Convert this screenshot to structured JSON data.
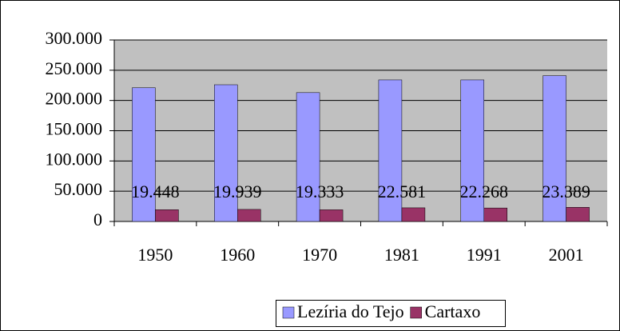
{
  "chart_data": {
    "type": "bar",
    "categories": [
      "1950",
      "1960",
      "1970",
      "1981",
      "1991",
      "2001"
    ],
    "series": [
      {
        "name": "Lezíria do Tejo",
        "color": "#9999ff",
        "values": [
          221000,
          226000,
          213000,
          234000,
          234000,
          241000
        ]
      },
      {
        "name": "Cartaxo",
        "color": "#993366",
        "values": [
          19448,
          19939,
          19333,
          22581,
          22268,
          23389
        ],
        "value_labels": [
          "19.448",
          "19.939",
          "19.333",
          "22.581",
          "22.268",
          "23.389"
        ]
      }
    ],
    "ylim": [
      0,
      300000
    ],
    "yticks": [
      0,
      {
        "value": 50000,
        "label": "50.000"
      },
      {
        "value": 100000,
        "label": "100.000"
      },
      {
        "value": 150000,
        "label": "150.000"
      },
      {
        "value": 200000,
        "label": "200.000"
      },
      {
        "value": 250000,
        "label": "250.000"
      },
      {
        "value": 300000,
        "label": "300.000"
      }
    ],
    "grid": true,
    "plot_background": "#c0c0c0",
    "legend": "bottom"
  }
}
